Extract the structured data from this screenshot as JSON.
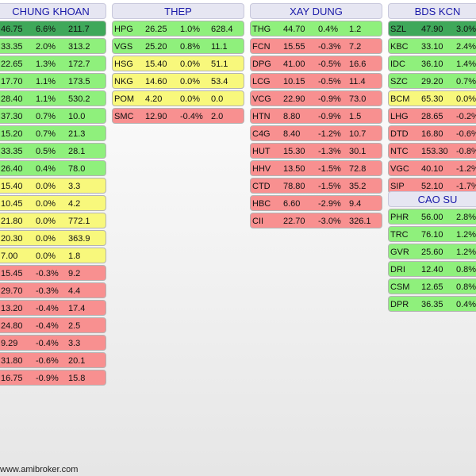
{
  "columns": [
    {
      "id": "chung-khoan",
      "title": "CHUNG KHOAN",
      "rows": [
        {
          "symbol": "",
          "price": "46.75",
          "change": "6.6%",
          "volume": "211.7",
          "color": "c-dg"
        },
        {
          "symbol": "",
          "price": "33.35",
          "change": "2.0%",
          "volume": "313.2",
          "color": "c-g"
        },
        {
          "symbol": "",
          "price": "22.65",
          "change": "1.3%",
          "volume": "172.7",
          "color": "c-g"
        },
        {
          "symbol": "",
          "price": "17.70",
          "change": "1.1%",
          "volume": "173.5",
          "color": "c-g"
        },
        {
          "symbol": "",
          "price": "28.40",
          "change": "1.1%",
          "volume": "530.2",
          "color": "c-g"
        },
        {
          "symbol": "",
          "price": "37.30",
          "change": "0.7%",
          "volume": "10.0",
          "color": "c-g"
        },
        {
          "symbol": "",
          "price": "15.20",
          "change": "0.7%",
          "volume": "21.3",
          "color": "c-g"
        },
        {
          "symbol": "",
          "price": "33.35",
          "change": "0.5%",
          "volume": "28.1",
          "color": "c-g"
        },
        {
          "symbol": "",
          "price": "26.40",
          "change": "0.4%",
          "volume": "78.0",
          "color": "c-g"
        },
        {
          "symbol": "",
          "price": "15.40",
          "change": "0.0%",
          "volume": "3.3",
          "color": "c-y"
        },
        {
          "symbol": "",
          "price": "10.45",
          "change": "0.0%",
          "volume": "4.2",
          "color": "c-y"
        },
        {
          "symbol": "",
          "price": "21.80",
          "change": "0.0%",
          "volume": "772.1",
          "color": "c-y"
        },
        {
          "symbol": "",
          "price": "20.30",
          "change": "0.0%",
          "volume": "363.9",
          "color": "c-y"
        },
        {
          "symbol": "",
          "price": "7.00",
          "change": "0.0%",
          "volume": "1.8",
          "color": "c-y"
        },
        {
          "symbol": "",
          "price": "15.45",
          "change": "-0.3%",
          "volume": "9.2",
          "color": "c-r"
        },
        {
          "symbol": "",
          "price": "29.70",
          "change": "-0.3%",
          "volume": "4.4",
          "color": "c-r"
        },
        {
          "symbol": "",
          "price": "13.20",
          "change": "-0.4%",
          "volume": "17.4",
          "color": "c-r"
        },
        {
          "symbol": "",
          "price": "24.80",
          "change": "-0.4%",
          "volume": "2.5",
          "color": "c-r"
        },
        {
          "symbol": "",
          "price": "9.29",
          "change": "-0.4%",
          "volume": "3.3",
          "color": "c-r"
        },
        {
          "symbol": "",
          "price": "31.80",
          "change": "-0.6%",
          "volume": "20.1",
          "color": "c-r"
        },
        {
          "symbol": "",
          "price": "16.75",
          "change": "-0.9%",
          "volume": "15.8",
          "color": "c-r"
        }
      ]
    },
    {
      "id": "thep",
      "title": "THEP",
      "rows": [
        {
          "symbol": "HPG",
          "price": "26.25",
          "change": "1.0%",
          "volume": "628.4",
          "color": "c-g"
        },
        {
          "symbol": "VGS",
          "price": "25.20",
          "change": "0.8%",
          "volume": "11.1",
          "color": "c-g"
        },
        {
          "symbol": "HSG",
          "price": "15.40",
          "change": "0.0%",
          "volume": "51.1",
          "color": "c-y"
        },
        {
          "symbol": "NKG",
          "price": "14.60",
          "change": "0.0%",
          "volume": "53.4",
          "color": "c-y"
        },
        {
          "symbol": "POM",
          "price": "4.20",
          "change": "0.0%",
          "volume": "0.0",
          "color": "c-y"
        },
        {
          "symbol": "SMC",
          "price": "12.90",
          "change": "-0.4%",
          "volume": "2.0",
          "color": "c-r"
        }
      ]
    },
    {
      "id": "xay-dung",
      "title": "XAY DUNG",
      "rows": [
        {
          "symbol": "THG",
          "price": "44.70",
          "change": "0.4%",
          "volume": "1.2",
          "color": "c-g"
        },
        {
          "symbol": "FCN",
          "price": "15.55",
          "change": "-0.3%",
          "volume": "7.2",
          "color": "c-r"
        },
        {
          "symbol": "DPG",
          "price": "41.00",
          "change": "-0.5%",
          "volume": "16.6",
          "color": "c-r"
        },
        {
          "symbol": "LCG",
          "price": "10.15",
          "change": "-0.5%",
          "volume": "11.4",
          "color": "c-r"
        },
        {
          "symbol": "VCG",
          "price": "22.90",
          "change": "-0.9%",
          "volume": "73.0",
          "color": "c-r"
        },
        {
          "symbol": "HTN",
          "price": "8.80",
          "change": "-0.9%",
          "volume": "1.5",
          "color": "c-r"
        },
        {
          "symbol": "C4G",
          "price": "8.40",
          "change": "-1.2%",
          "volume": "10.7",
          "color": "c-r"
        },
        {
          "symbol": "HUT",
          "price": "15.30",
          "change": "-1.3%",
          "volume": "30.1",
          "color": "c-r"
        },
        {
          "symbol": "HHV",
          "price": "13.50",
          "change": "-1.5%",
          "volume": "72.8",
          "color": "c-r"
        },
        {
          "symbol": "CTD",
          "price": "78.80",
          "change": "-1.5%",
          "volume": "35.2",
          "color": "c-r"
        },
        {
          "symbol": "HBC",
          "price": "6.60",
          "change": "-2.9%",
          "volume": "9.4",
          "color": "c-r"
        },
        {
          "symbol": "CII",
          "price": "22.70",
          "change": "-3.0%",
          "volume": "326.1",
          "color": "c-r"
        }
      ]
    },
    {
      "id": "bds-kcn",
      "title": "BDS KCN",
      "rows": [
        {
          "symbol": "SZL",
          "price": "47.90",
          "change": "3.0%",
          "volume": "",
          "color": "c-dg"
        },
        {
          "symbol": "KBC",
          "price": "33.10",
          "change": "2.4%",
          "volume": "",
          "color": "c-g"
        },
        {
          "symbol": "IDC",
          "price": "36.10",
          "change": "1.4%",
          "volume": "",
          "color": "c-g"
        },
        {
          "symbol": "SZC",
          "price": "29.20",
          "change": "0.7%",
          "volume": "",
          "color": "c-g"
        },
        {
          "symbol": "BCM",
          "price": "65.30",
          "change": "0.0%",
          "volume": "",
          "color": "c-y"
        },
        {
          "symbol": "LHG",
          "price": "28.65",
          "change": "-0.2%",
          "volume": "",
          "color": "c-r"
        },
        {
          "symbol": "DTD",
          "price": "16.80",
          "change": "-0.6%",
          "volume": "",
          "color": "c-r"
        },
        {
          "symbol": "NTC",
          "price": "153.30",
          "change": "-0.8%",
          "volume": "",
          "color": "c-r"
        },
        {
          "symbol": "VGC",
          "price": "40.10",
          "change": "-1.2%",
          "volume": "",
          "color": "c-r"
        },
        {
          "symbol": "SIP",
          "price": "52.10",
          "change": "-1.7%",
          "volume": "",
          "color": "c-r"
        }
      ]
    },
    {
      "id": "cao-su",
      "title": "CAO SU",
      "rows": [
        {
          "symbol": "PHR",
          "price": "56.00",
          "change": "2.8%",
          "volume": "",
          "color": "c-g"
        },
        {
          "symbol": "TRC",
          "price": "76.10",
          "change": "1.2%",
          "volume": "",
          "color": "c-g"
        },
        {
          "symbol": "GVR",
          "price": "25.60",
          "change": "1.2%",
          "volume": "",
          "color": "c-g"
        },
        {
          "symbol": "DRI",
          "price": "12.40",
          "change": "0.8%",
          "volume": "",
          "color": "c-g"
        },
        {
          "symbol": "CSM",
          "price": "12.65",
          "change": "0.8%",
          "volume": "",
          "color": "c-g"
        },
        {
          "symbol": "DPR",
          "price": "36.35",
          "change": "0.4%",
          "volume": "",
          "color": "c-g"
        }
      ]
    }
  ],
  "footer": "www.amibroker.com"
}
